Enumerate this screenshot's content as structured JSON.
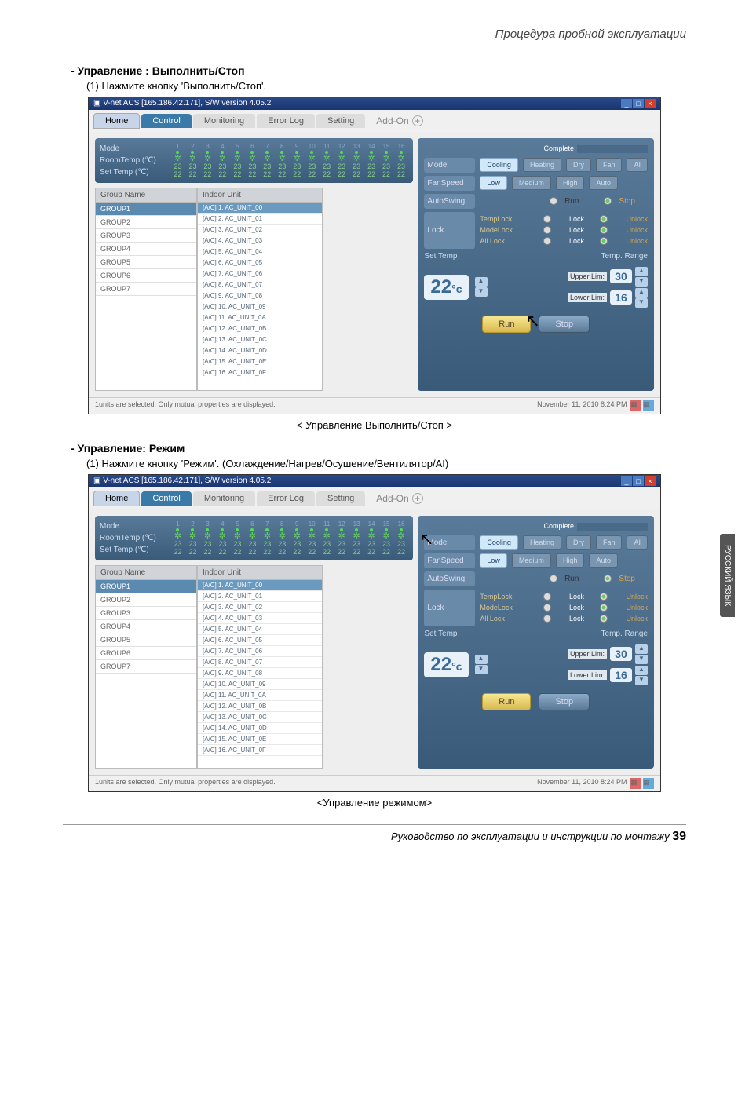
{
  "header": {
    "title": "Процедура пробной эксплуатации"
  },
  "sec1": {
    "title": "- Управление : Выполнить/Стоп",
    "sub": "(1) Нажмите кнопку 'Выполнить/Стоп'.",
    "caption": "< Управление Выполнить/Стоп >"
  },
  "sec2": {
    "title": "- Управление: Режим",
    "sub": "(1) Нажмите кнопку 'Режим'. (Охлаждение/Нагрев/Осушение/Вентилятор/AI)",
    "caption": "<Управление режимом>"
  },
  "app": {
    "winTitle": "V-net ACS [165.186.42.171],   S/W version 4.05.2",
    "tabs": {
      "home": "Home",
      "control": "Control",
      "monitoring": "Monitoring",
      "errorlog": "Error Log",
      "setting": "Setting",
      "addon": "Add-On"
    },
    "status": {
      "mode": "Mode",
      "roomtemp": "RoomTemp (℃)",
      "settemp": "Set Temp  (℃)",
      "val1": "23",
      "val2": "22"
    },
    "unitNums": [
      "1",
      "2",
      "3",
      "4",
      "5",
      "6",
      "7",
      "8",
      "9",
      "10",
      "11",
      "12",
      "13",
      "14",
      "15",
      "16"
    ],
    "grpHdr": "Group Name",
    "unitHdr": "Indoor Unit",
    "groups": [
      "GROUP1",
      "GROUP2",
      "GROUP3",
      "GROUP4",
      "GROUP5",
      "GROUP6",
      "GROUP7"
    ],
    "units": [
      "[A/C] 1. AC_UNIT_00",
      "[A/C] 2. AC_UNIT_01",
      "[A/C] 3. AC_UNIT_02",
      "[A/C] 4. AC_UNIT_03",
      "[A/C] 5. AC_UNIT_04",
      "[A/C] 6. AC_UNIT_05",
      "[A/C] 7. AC_UNIT_06",
      "[A/C] 8. AC_UNIT_07",
      "[A/C] 9. AC_UNIT_08",
      "[A/C] 10. AC_UNIT_09",
      "[A/C] 11. AC_UNIT_0A",
      "[A/C] 12. AC_UNIT_0B",
      "[A/C] 13. AC_UNIT_0C",
      "[A/C] 14. AC_UNIT_0D",
      "[A/C] 15. AC_UNIT_0E",
      "[A/C] 16. AC_UNIT_0F"
    ],
    "complete": "Complete",
    "panel": {
      "mode": "Mode",
      "modes": [
        "Cooling",
        "Heating",
        "Dry",
        "Fan",
        "AI"
      ],
      "fanspeed": "FanSpeed",
      "speeds": [
        "Low",
        "Medium",
        "High",
        "Auto"
      ],
      "autoswing": "AutoSwing",
      "run": "Run",
      "stop": "Stop",
      "lock": "Lock",
      "templock": "TempLock",
      "modelock": "ModeLock",
      "alllock": "All Lock",
      "lockv": "Lock",
      "unlock": "Unlock",
      "settemp": "Set Temp",
      "temprange": "Temp. Range",
      "tempval": "22",
      "tempunit": "°c",
      "upperlim": "Upper Lim:",
      "lowerlim": "Lower Lim:",
      "upper": "30",
      "lower": "16",
      "runbtn": "Run",
      "stopbtn": "Stop"
    },
    "footer": {
      "left": "1units are selected. Only mutual properties are displayed.",
      "right": "November 11, 2010  8:24 PM"
    }
  },
  "sidetab": "РУССКИЙ ЯЗЫК",
  "pgfoot": {
    "text": "Руководство по эксплуатации и инструкции по монтажу  ",
    "num": "39"
  }
}
